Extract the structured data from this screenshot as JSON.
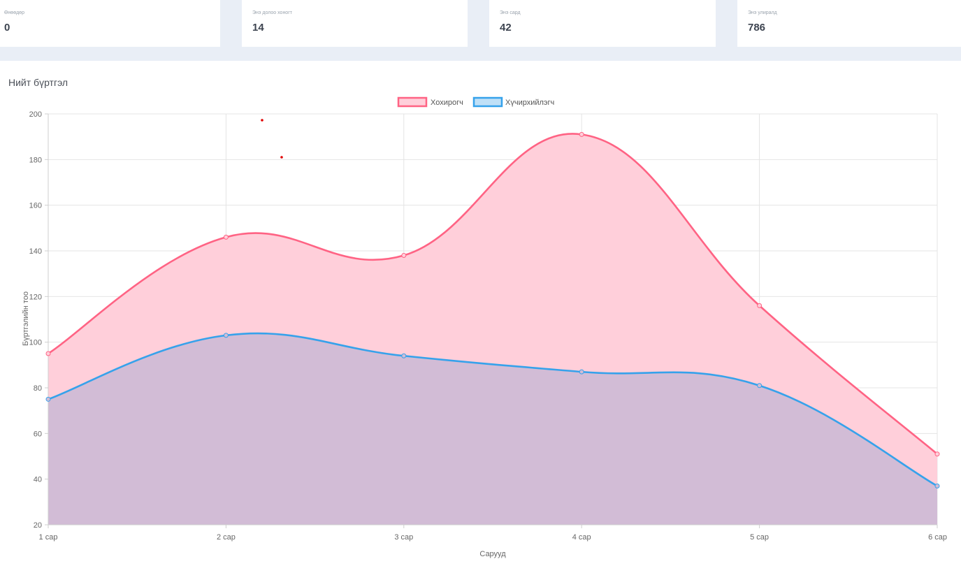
{
  "stats": [
    {
      "label": "Өнөөдөр",
      "value": "0"
    },
    {
      "label": "Энэ долоо хоногт",
      "value": "14"
    },
    {
      "label": "Энэ сард",
      "value": "42"
    },
    {
      "label": "Энэ улиралд",
      "value": "786"
    }
  ],
  "chart_title": "Нийт бүртгэл",
  "chart_data": {
    "type": "area",
    "categories": [
      "1 сар",
      "2 сар",
      "3 сар",
      "4 сар",
      "5 сар",
      "6 сар"
    ],
    "series": [
      {
        "name": "Хохирогч",
        "values": [
          95,
          146,
          138,
          191,
          116,
          51
        ],
        "color": "#ff6384",
        "fill": "#ffcfda"
      },
      {
        "name": "Хүчирхийлэгч",
        "values": [
          75,
          103,
          94,
          87,
          81,
          37
        ],
        "color": "#36a2eb",
        "fill": "#d2bcd6"
      }
    ],
    "xlabel": "Сарууд",
    "ylabel": "Бүртгэлийн тоо",
    "ylim": [
      20,
      200
    ],
    "yticks": [
      20,
      40,
      60,
      80,
      100,
      120,
      140,
      160,
      180,
      200
    ],
    "grid": true,
    "legend_position": "top"
  }
}
